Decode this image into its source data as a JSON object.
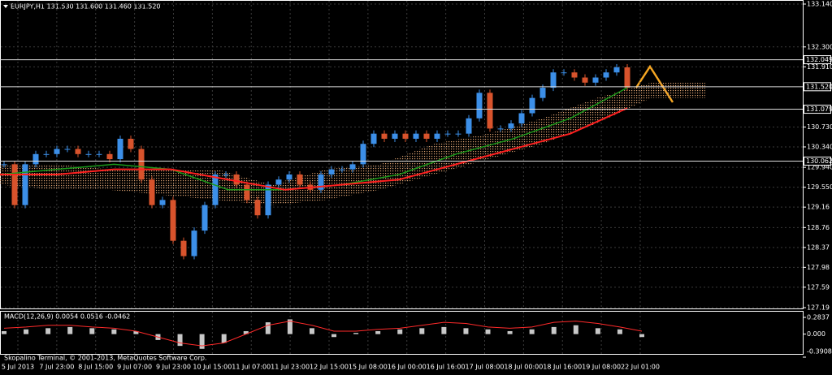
{
  "header": "EURJPY,H1  131.530 131.600 131.460 131.520",
  "copyright": "Skopalino Terminal, © 2001-2013, MetaQuotes Software Corp.",
  "price": {
    "ylim": [
      127.19,
      133.14
    ],
    "ticks": [
      {
        "value": 133.14,
        "label": "133.140"
      },
      {
        "value": 132.3,
        "label": "132.300"
      },
      {
        "value": 131.91,
        "label": "131.910"
      },
      {
        "value": 130.73,
        "label": "130.730"
      },
      {
        "value": 130.34,
        "label": "130.340"
      },
      {
        "value": 129.94,
        "label": "129.940"
      },
      {
        "value": 129.55,
        "label": "129.550"
      },
      129.16,
      128.76,
      128.37,
      127.98,
      127.59,
      127.19
    ],
    "levels": [
      132.049,
      {
        "value": 131.52,
        "label": "131.520"
      },
      131.079,
      130.062
    ],
    "closes": [
      130.0,
      129.2,
      130.0,
      130.2,
      130.2,
      130.3,
      130.3,
      130.2,
      130.2,
      130.2,
      130.1,
      130.5,
      130.3,
      129.7,
      129.2,
      129.3,
      128.5,
      128.2,
      128.7,
      129.2,
      129.8,
      129.8,
      129.6,
      129.3,
      129.0,
      129.6,
      129.7,
      129.8,
      129.6,
      129.5,
      129.8,
      129.9,
      129.9,
      130.0,
      130.4,
      130.6,
      130.5,
      130.6,
      130.5,
      130.6,
      130.5,
      130.6,
      130.6,
      130.6,
      130.9,
      131.4,
      130.7,
      130.7,
      130.8,
      131.0,
      131.3,
      131.5,
      131.8,
      131.8,
      131.7,
      131.6,
      131.7,
      131.8,
      131.9,
      131.5
    ],
    "ma_green": [
      129.8,
      129.9,
      130.0,
      129.9,
      129.5,
      129.5,
      129.6,
      129.8,
      130.2,
      130.5,
      130.9,
      131.5
    ],
    "ma_red": [
      129.8,
      129.8,
      129.9,
      129.9,
      129.7,
      129.5,
      129.6,
      129.7,
      130.0,
      130.3,
      130.6,
      131.1
    ],
    "cloud_top": [
      130.0,
      130.0,
      129.9,
      129.9,
      129.9,
      129.6,
      129.9,
      130.0,
      130.4,
      130.6,
      130.9,
      131.3,
      131.6,
      131.6
    ],
    "cloud_bottom": [
      129.6,
      129.5,
      129.5,
      129.4,
      129.3,
      129.2,
      129.3,
      129.5,
      129.8,
      130.1,
      130.4,
      130.8,
      131.3,
      131.3
    ]
  },
  "macd": {
    "label": "MACD(12,26,9) 0.0054 0.0516 -0.0462",
    "ylim": [
      -0.3908,
      0.2837
    ],
    "ticks": [
      0.2837,
      {
        "value": 0,
        "label": "0.000"
      },
      -0.3908
    ],
    "hist": [
      0.05,
      0.08,
      0.1,
      0.12,
      0.1,
      0.08,
      0.05,
      -0.1,
      -0.2,
      -0.25,
      -0.15,
      0.05,
      0.2,
      0.25,
      0.1,
      -0.05,
      0.02,
      0.05,
      0.08,
      0.1,
      0.12,
      0.1,
      0.08,
      0.05,
      0.08,
      0.12,
      0.15,
      0.1,
      0.08,
      -0.05
    ],
    "signal": [
      0.1,
      0.12,
      0.15,
      0.15,
      0.12,
      0.1,
      0.05,
      -0.05,
      -0.15,
      -0.2,
      -0.15,
      0,
      0.15,
      0.22,
      0.15,
      0.05,
      0.05,
      0.08,
      0.1,
      0.15,
      0.2,
      0.18,
      0.12,
      0.1,
      0.12,
      0.2,
      0.22,
      0.18,
      0.12,
      0.05
    ]
  },
  "time_labels": [
    "5 Jul 2013",
    "7 Jul 23:00",
    "8 Jul 15:00",
    "9 Jul 07:00",
    "9 Jul 23:00",
    "10 Jul 15:00",
    "11 Jul 07:00",
    "11 Jul 23:00",
    "12 Jul 15:00",
    "15 Jul 08:00",
    "16 Jul 00:00",
    "16 Jul 16:00",
    "17 Jul 08:00",
    "18 Jul 00:00",
    "18 Jul 16:00",
    "19 Jul 08:00",
    "22 Jul 01:00"
  ]
}
